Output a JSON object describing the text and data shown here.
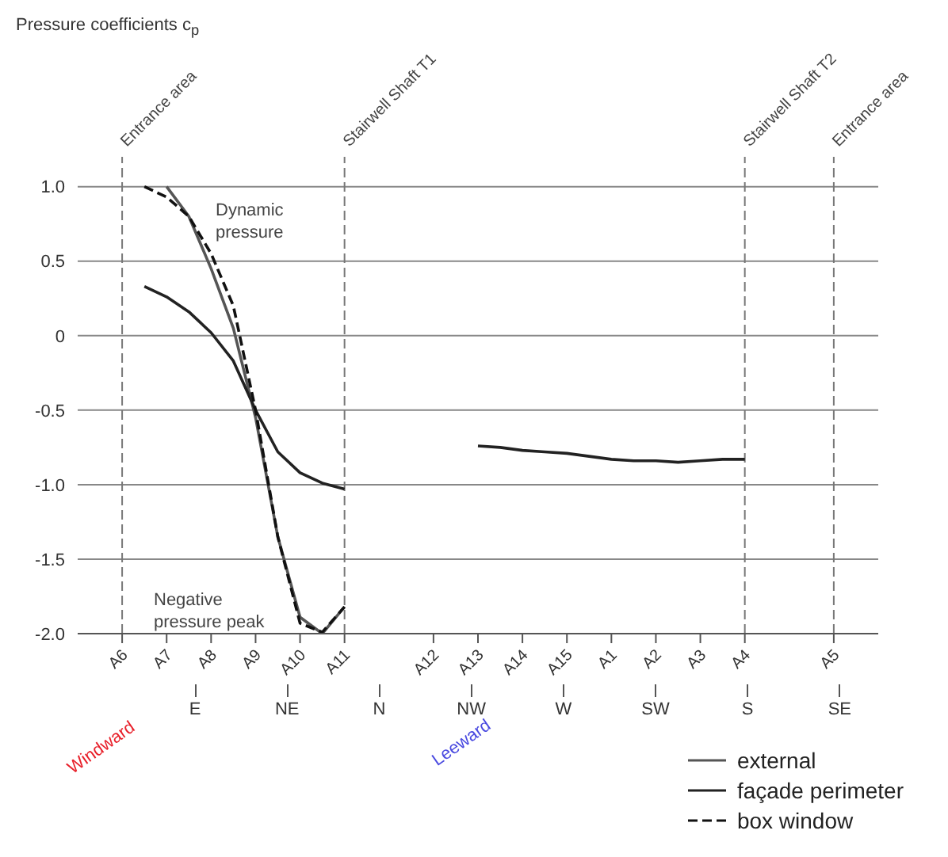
{
  "chart_data": {
    "type": "line",
    "title": "Pressure coefficients c$_{p}$",
    "categories": [
      null,
      null,
      "A6",
      null,
      "A7",
      null,
      "A8",
      null,
      "A9",
      null,
      "A10",
      null,
      "A11",
      null,
      null,
      null,
      "A12",
      null,
      "A13",
      null,
      "A14",
      null,
      "A15",
      null,
      "A1",
      null,
      "A2",
      null,
      "A3",
      null,
      "A4",
      null,
      null,
      null,
      "A5",
      null,
      null
    ],
    "ylim": [
      -2.0,
      1.2
    ],
    "yticks": [
      {
        "value": 1.0,
        "label": "1.0"
      },
      0.5,
      0,
      -0.5,
      {
        "value": -1.0,
        "label": "-1.0"
      },
      -1.5,
      {
        "value": -2.0,
        "label": "-2.0"
      }
    ],
    "grid": "y",
    "legend": "bottom right",
    "series": [
      {
        "name": "external",
        "color": "#555555",
        "line_style": "solid",
        "values": [
          null,
          null,
          null,
          null,
          1.0,
          0.8,
          0.45,
          0.05,
          -0.55,
          -1.35,
          -1.89,
          -2.0,
          -1.82,
          null,
          null,
          null,
          null,
          null,
          null,
          null,
          null,
          null,
          null,
          null,
          null,
          null,
          null,
          null,
          null,
          null,
          null,
          null,
          null,
          null,
          null,
          null,
          null
        ]
      },
      {
        "name": "façade perimeter",
        "color": "#222222",
        "line_style": "solid",
        "values": [
          null,
          null,
          null,
          0.33,
          0.26,
          0.16,
          0.02,
          -0.17,
          -0.5,
          -0.78,
          -0.92,
          -0.99,
          -1.03,
          null,
          null,
          null,
          null,
          null,
          -0.74,
          -0.75,
          -0.77,
          -0.78,
          -0.79,
          -0.81,
          -0.83,
          -0.84,
          -0.84,
          -0.85,
          -0.84,
          -0.83,
          -0.83,
          null,
          null,
          null,
          null,
          null,
          null
        ]
      },
      {
        "name": "box window",
        "color": "#111111",
        "line_style": "dashed",
        "values": [
          null,
          null,
          null,
          1.0,
          0.93,
          0.8,
          0.55,
          0.2,
          -0.5,
          -1.35,
          -1.93,
          -1.99,
          -1.82,
          null,
          null,
          null,
          null,
          null,
          null,
          null,
          null,
          null,
          null,
          null,
          null,
          null,
          null,
          null,
          null,
          null,
          null,
          null,
          null,
          null,
          null,
          null,
          null
        ]
      }
    ],
    "ref_lines": [
      {
        "axis": "x",
        "value": "A6",
        "label": "Entrance area",
        "line_style": "dashed"
      },
      {
        "axis": "x",
        "value": "A11",
        "label": "Stairwell Shaft T1",
        "line_style": "dashed"
      },
      {
        "axis": "x",
        "value": "A4",
        "label": "Stairwell Shaft T2",
        "line_style": "dashed"
      },
      {
        "axis": "x",
        "value": "A5",
        "label": "Entrance area",
        "line_style": "dashed"
      }
    ],
    "annotations": [
      "Dynamic pressure",
      "Negative pressure peak",
      "Windward",
      "Leeward",
      "E",
      "NE",
      "N",
      "NW",
      "W",
      "SW",
      "S",
      "SE"
    ]
  }
}
